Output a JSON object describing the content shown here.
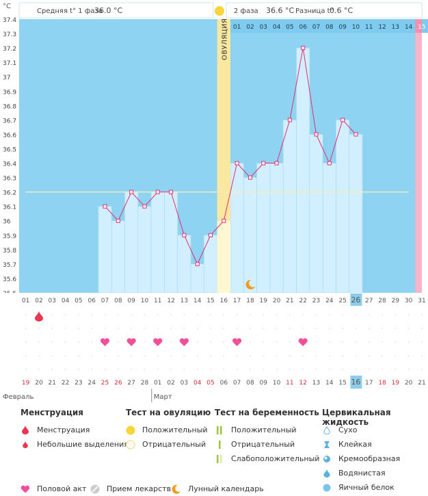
{
  "header": {
    "unit": "°C",
    "phase1_label": "Средняя t° 1 фаза",
    "phase1_value": "36.0 °C",
    "phase2_label": "2 фаза",
    "phase2_value": "36.6 °C",
    "diff_label": "Разница t°",
    "diff_value": "0.6 °C",
    "ovulation_label": "ОВУЛЯЦИЯ"
  },
  "chart_data": {
    "type": "line",
    "ylim": [
      35.5,
      37.4
    ],
    "yticks": [
      "35.5",
      "35.6",
      "35.7",
      "35.8",
      "35.9",
      "36",
      "36.1",
      "36.2",
      "36.3",
      "36.4",
      "36.5",
      "36.6",
      "36.7",
      "36.8",
      "36.9",
      "37",
      "37.1",
      "37.2",
      "37.3",
      "37.4"
    ],
    "cycle_days": [
      "01",
      "02",
      "03",
      "04",
      "05",
      "06",
      "07",
      "08",
      "09",
      "10",
      "11",
      "12",
      "13",
      "14",
      "15",
      "16",
      "17",
      "18",
      "19",
      "20",
      "21",
      "22",
      "23",
      "24",
      "25",
      "26",
      "27",
      "28",
      "29",
      "30",
      "31"
    ],
    "today_index": 25,
    "ovulation_index": 15,
    "phase2_days": [
      "01",
      "02",
      "03",
      "04",
      "05",
      "06",
      "07",
      "08",
      "09",
      "10",
      "11",
      "12",
      "13",
      "14",
      "15"
    ],
    "phase2_last_index": 14,
    "coverline": 36.2,
    "temperatures": [
      null,
      null,
      null,
      null,
      null,
      null,
      36.1,
      36.0,
      36.2,
      36.1,
      36.2,
      36.2,
      35.9,
      35.7,
      35.9,
      36.0,
      36.4,
      36.3,
      36.4,
      36.4,
      36.7,
      37.2,
      36.6,
      36.4,
      36.7,
      36.6,
      null,
      null,
      null,
      null,
      null
    ],
    "menstruation": [
      1
    ],
    "intercourse": [
      6,
      8,
      10,
      12,
      16,
      21
    ],
    "moon": [
      17
    ],
    "dates": [
      "19",
      "20",
      "21",
      "22",
      "23",
      "24",
      "25",
      "26",
      "27",
      "28",
      "01",
      "02",
      "03",
      "04",
      "05",
      "06",
      "07",
      "08",
      "09",
      "10",
      "11",
      "12",
      "13",
      "14",
      "15",
      "16",
      "17",
      "18",
      "19",
      "20",
      "21"
    ],
    "red_dates": [
      0,
      6,
      7,
      13,
      14,
      20,
      21,
      27,
      28
    ],
    "month_feb": "Февраль",
    "month_mar": "Март",
    "month_split_index": 10,
    "colors": {
      "plot_bg": "#8fd3f2",
      "bar_fill": "#d2efff",
      "line": "#e62a6e",
      "ovulation": "#fae7a0",
      "today": "#8bcdeb",
      "pink": "#f8b4c8",
      "coverline": "#f0eec0",
      "grid_line": "#a7dcf5"
    }
  },
  "legend": {
    "menstruation": {
      "title": "Менструация",
      "items": [
        "Менструация",
        "Небольшие выделения"
      ]
    },
    "ovulation_test": {
      "title": "Тест на овуляцию",
      "items": [
        "Положительный",
        "Отрицательный"
      ]
    },
    "pregnancy_test": {
      "title": "Тест на беременность",
      "items": [
        "Положительный",
        "Отрицательный",
        "Слабоположительный"
      ]
    },
    "cervical": {
      "title": "Цервикальная жидкость",
      "items": [
        "Сухо",
        "Клейкая",
        "Кремообразная",
        "Водянистая",
        "Яичный белок"
      ]
    },
    "bottom": [
      "Половой акт",
      "Прием лекарств",
      "Лунный календарь"
    ]
  }
}
